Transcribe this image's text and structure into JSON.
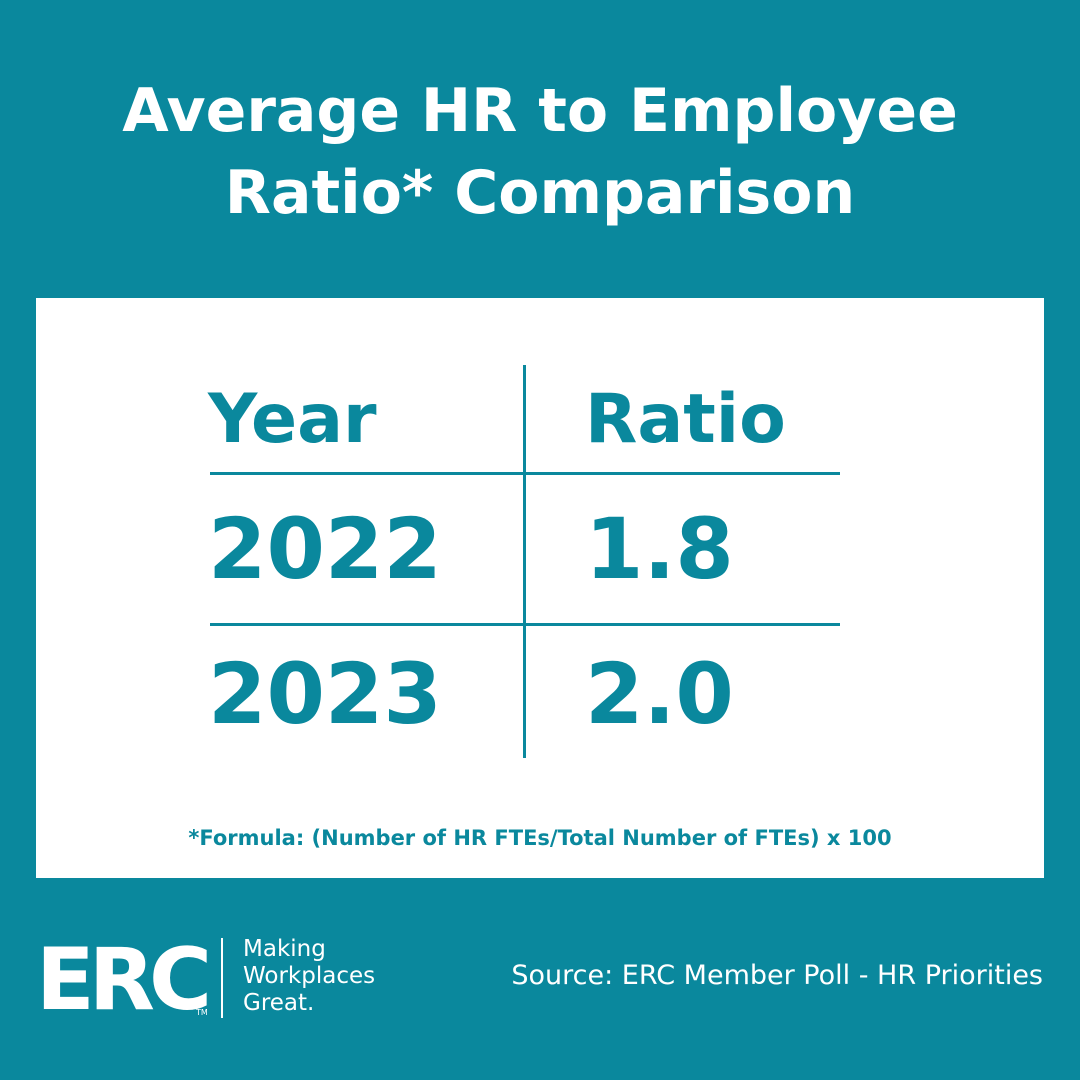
{
  "header": {
    "title": "Average HR to Employee Ratio* Comparison"
  },
  "table": {
    "columns": [
      "Year",
      "Ratio"
    ],
    "rows": [
      [
        "2022",
        "1.8"
      ],
      [
        "2023",
        "2.0"
      ]
    ]
  },
  "footnote": "*Formula: (Number of HR FTEs/Total Number of FTEs) x 100",
  "footer": {
    "logo": "ERC",
    "trademark": "TM",
    "tagline": [
      "Making",
      "Workplaces",
      "Great."
    ],
    "source": "Source: ERC Member Poll - HR Priorities"
  }
}
